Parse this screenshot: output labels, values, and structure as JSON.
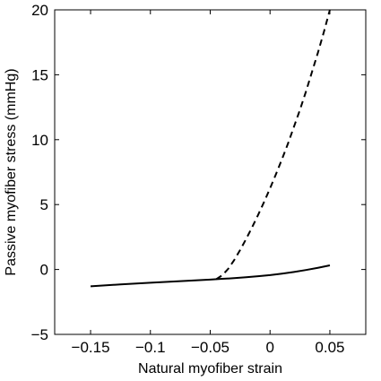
{
  "chart_data": {
    "type": "line",
    "title": "",
    "xlabel": "Natural myofiber strain",
    "ylabel": "Passive myofiber stress (mmHg)",
    "xlim": [
      -0.18,
      0.08
    ],
    "ylim": [
      -5,
      20
    ],
    "xticks": [
      {
        "value": -0.15,
        "label": "−0.15"
      },
      {
        "value": -0.1,
        "label": "−0.1"
      },
      {
        "value": -0.05,
        "label": "−0.05"
      },
      {
        "value": 0,
        "label": "0"
      },
      {
        "value": 0.05,
        "label": "0.05"
      }
    ],
    "yticks": [
      {
        "value": -5,
        "label": "−5"
      },
      {
        "value": 0,
        "label": "0"
      },
      {
        "value": 5,
        "label": "5"
      },
      {
        "value": 10,
        "label": "10"
      },
      {
        "value": 15,
        "label": "15"
      },
      {
        "value": 20,
        "label": "20"
      }
    ],
    "grid": false,
    "series": [
      {
        "style": "solid",
        "color": "#000000",
        "x": [
          -0.15,
          -0.125,
          -0.1,
          -0.075,
          -0.05,
          -0.04,
          -0.03,
          -0.02,
          -0.01,
          0,
          0.01,
          0.02,
          0.03,
          0.04,
          0.05
        ],
        "y": [
          -1.3,
          -1.15,
          -1.02,
          -0.9,
          -0.78,
          -0.72,
          -0.67,
          -0.6,
          -0.52,
          -0.43,
          -0.32,
          -0.19,
          -0.04,
          0.13,
          0.32
        ]
      },
      {
        "style": "dashed",
        "color": "#000000",
        "x": [
          -0.045,
          -0.04,
          -0.035,
          -0.03,
          -0.025,
          -0.02,
          -0.015,
          -0.01,
          -0.005,
          0,
          0.005,
          0.01,
          0.015,
          0.02,
          0.025,
          0.03,
          0.035,
          0.04,
          0.045,
          0.05
        ],
        "y": [
          -0.75,
          -0.45,
          0.05,
          0.72,
          1.5,
          2.35,
          3.25,
          4.2,
          5.2,
          6.25,
          7.35,
          8.5,
          9.7,
          11.0,
          12.3,
          13.7,
          15.2,
          16.7,
          18.3,
          20.0
        ]
      }
    ]
  }
}
